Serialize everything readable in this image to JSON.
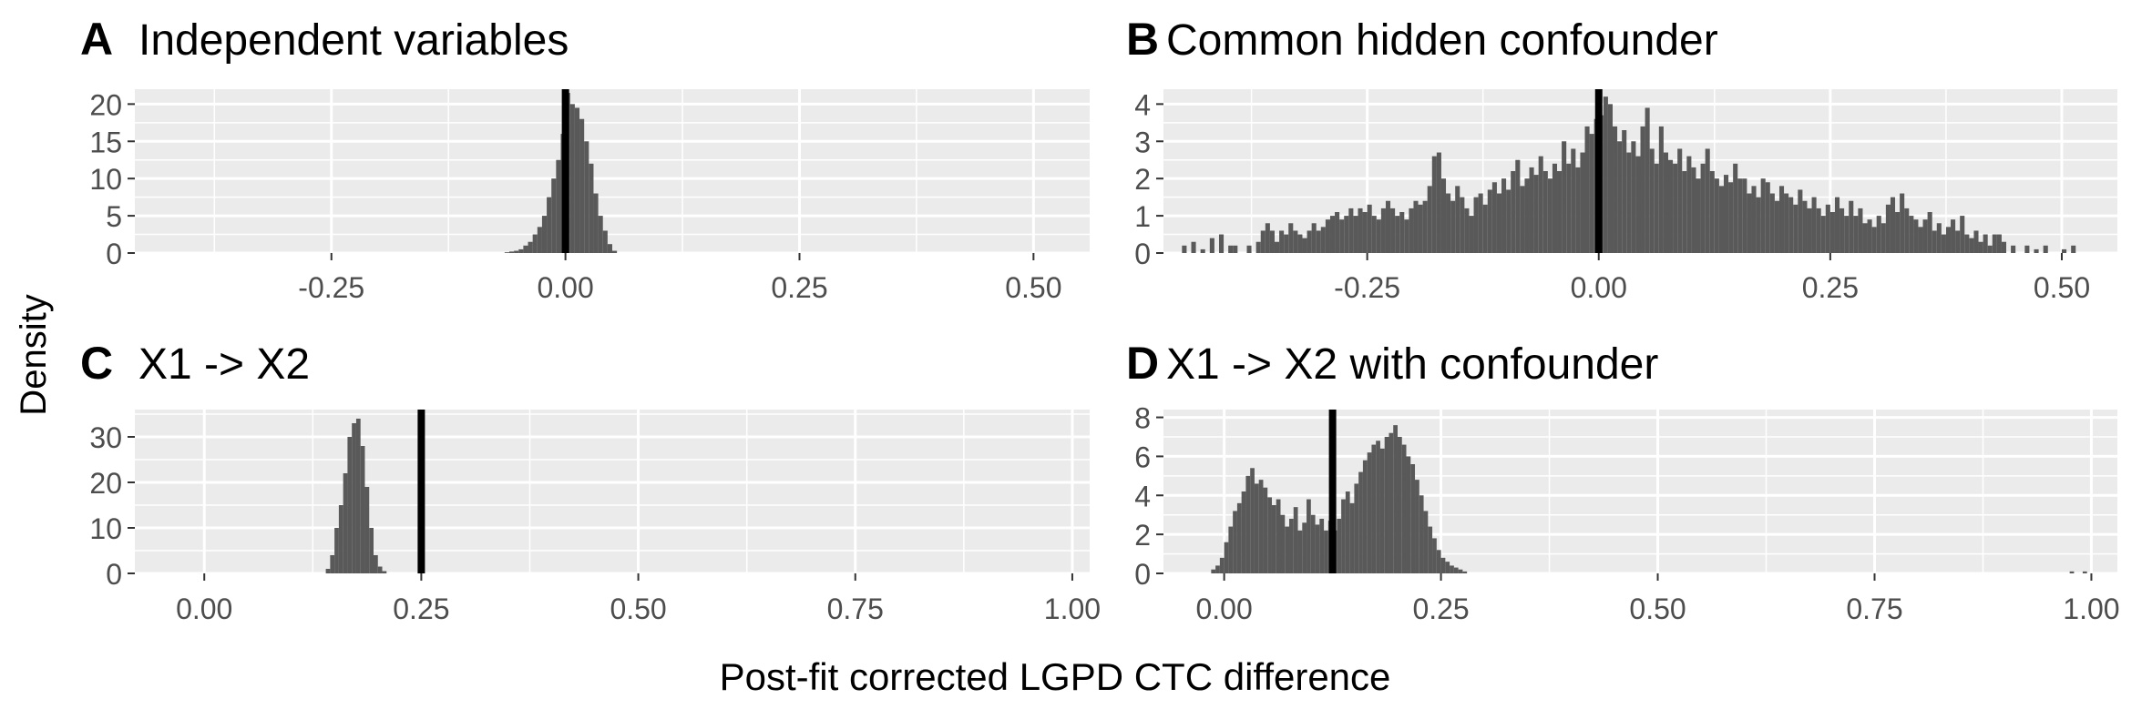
{
  "figure": {
    "ylabel": "Density",
    "xlabel": "Post-fit corrected LGPD CTC difference"
  },
  "chart_data": [
    {
      "type": "histogram",
      "panel": "A",
      "title": "Independent variables",
      "xlim": [
        -0.46,
        0.56
      ],
      "ylim": [
        0,
        22
      ],
      "xticks": [
        -0.25,
        0.0,
        0.25,
        0.5
      ],
      "xtick_labels": [
        "-0.25",
        "0.00",
        "0.25",
        "0.50"
      ],
      "yticks": [
        0,
        5,
        10,
        15,
        20
      ],
      "ytick_labels": [
        "0",
        "5",
        "10",
        "15",
        "20"
      ],
      "vline": 0.0,
      "bin_width": 0.005,
      "bins": [
        [
          -0.065,
          0.1
        ],
        [
          -0.06,
          0.2
        ],
        [
          -0.055,
          0.3
        ],
        [
          -0.05,
          0.5
        ],
        [
          -0.045,
          1.0
        ],
        [
          -0.04,
          1.5
        ],
        [
          -0.035,
          2.5
        ],
        [
          -0.03,
          3.5
        ],
        [
          -0.025,
          5.0
        ],
        [
          -0.02,
          7.5
        ],
        [
          -0.015,
          10.0
        ],
        [
          -0.01,
          12.5
        ],
        [
          -0.005,
          16.0
        ],
        [
          0.0,
          21.5
        ],
        [
          0.005,
          20.0
        ],
        [
          0.01,
          19.5
        ],
        [
          0.015,
          18.0
        ],
        [
          0.02,
          15.0
        ],
        [
          0.025,
          12.0
        ],
        [
          0.03,
          8.0
        ],
        [
          0.035,
          5.0
        ],
        [
          0.04,
          3.0
        ],
        [
          0.045,
          1.2
        ],
        [
          0.05,
          0.3
        ]
      ],
      "grid": true
    },
    {
      "type": "histogram",
      "panel": "B",
      "title": "Common hidden confounder",
      "xlim": [
        -0.47,
        0.56
      ],
      "ylim": [
        0,
        4.4
      ],
      "xticks": [
        -0.25,
        0.0,
        0.25,
        0.5
      ],
      "xtick_labels": [
        "-0.25",
        "0.00",
        "0.25",
        "0.50"
      ],
      "yticks": [
        0,
        1,
        2,
        3,
        4
      ],
      "ytick_labels": [
        "0",
        "1",
        "2",
        "3",
        "4"
      ],
      "vline": 0.0,
      "bin_width": 0.005,
      "bins": [
        [
          -0.45,
          0.2
        ],
        [
          -0.44,
          0.3
        ],
        [
          -0.43,
          0.1
        ],
        [
          -0.42,
          0.4
        ],
        [
          -0.41,
          0.5
        ],
        [
          -0.4,
          0.2
        ],
        [
          -0.395,
          0.2
        ],
        [
          -0.38,
          0.2
        ],
        [
          -0.37,
          0.3
        ],
        [
          -0.365,
          0.6
        ],
        [
          -0.36,
          0.8
        ],
        [
          -0.355,
          0.6
        ],
        [
          -0.35,
          0.3
        ],
        [
          -0.345,
          0.6
        ],
        [
          -0.34,
          0.5
        ],
        [
          -0.335,
          0.8
        ],
        [
          -0.33,
          0.6
        ],
        [
          -0.325,
          0.5
        ],
        [
          -0.32,
          0.4
        ],
        [
          -0.315,
          0.6
        ],
        [
          -0.31,
          0.8
        ],
        [
          -0.305,
          0.6
        ],
        [
          -0.3,
          0.7
        ],
        [
          -0.295,
          0.9
        ],
        [
          -0.29,
          1.0
        ],
        [
          -0.285,
          1.1
        ],
        [
          -0.28,
          0.9
        ],
        [
          -0.275,
          1.0
        ],
        [
          -0.27,
          1.2
        ],
        [
          -0.265,
          1.0
        ],
        [
          -0.26,
          1.2
        ],
        [
          -0.255,
          1.1
        ],
        [
          -0.25,
          1.3
        ],
        [
          -0.245,
          1.0
        ],
        [
          -0.24,
          0.9
        ],
        [
          -0.235,
          1.2
        ],
        [
          -0.23,
          1.4
        ],
        [
          -0.225,
          1.2
        ],
        [
          -0.22,
          1.0
        ],
        [
          -0.215,
          1.1
        ],
        [
          -0.21,
          0.9
        ],
        [
          -0.205,
          1.2
        ],
        [
          -0.2,
          1.4
        ],
        [
          -0.195,
          1.3
        ],
        [
          -0.19,
          1.4
        ],
        [
          -0.185,
          1.8
        ],
        [
          -0.18,
          2.6
        ],
        [
          -0.175,
          2.7
        ],
        [
          -0.17,
          2.0
        ],
        [
          -0.165,
          1.6
        ],
        [
          -0.16,
          1.4
        ],
        [
          -0.155,
          1.8
        ],
        [
          -0.15,
          1.5
        ],
        [
          -0.145,
          1.2
        ],
        [
          -0.14,
          1.0
        ],
        [
          -0.135,
          1.5
        ],
        [
          -0.13,
          1.6
        ],
        [
          -0.125,
          1.3
        ],
        [
          -0.12,
          1.7
        ],
        [
          -0.115,
          1.9
        ],
        [
          -0.11,
          1.6
        ],
        [
          -0.105,
          2.0
        ],
        [
          -0.1,
          1.7
        ],
        [
          -0.095,
          2.2
        ],
        [
          -0.09,
          2.5
        ],
        [
          -0.085,
          1.8
        ],
        [
          -0.08,
          2.0
        ],
        [
          -0.075,
          2.3
        ],
        [
          -0.07,
          2.1
        ],
        [
          -0.065,
          2.6
        ],
        [
          -0.06,
          2.2
        ],
        [
          -0.055,
          2.0
        ],
        [
          -0.05,
          2.4
        ],
        [
          -0.045,
          2.2
        ],
        [
          -0.04,
          3.0
        ],
        [
          -0.035,
          2.4
        ],
        [
          -0.03,
          2.8
        ],
        [
          -0.025,
          2.3
        ],
        [
          -0.02,
          2.7
        ],
        [
          -0.015,
          3.4
        ],
        [
          -0.01,
          3.2
        ],
        [
          -0.005,
          3.6
        ],
        [
          0.0,
          3.7
        ],
        [
          0.005,
          4.2
        ],
        [
          0.01,
          4.0
        ],
        [
          0.015,
          3.4
        ],
        [
          0.02,
          3.0
        ],
        [
          0.025,
          3.3
        ],
        [
          0.03,
          2.7
        ],
        [
          0.035,
          3.0
        ],
        [
          0.04,
          2.6
        ],
        [
          0.045,
          3.4
        ],
        [
          0.05,
          3.9
        ],
        [
          0.055,
          2.8
        ],
        [
          0.06,
          2.4
        ],
        [
          0.065,
          3.4
        ],
        [
          0.07,
          2.7
        ],
        [
          0.075,
          2.5
        ],
        [
          0.08,
          2.4
        ],
        [
          0.085,
          2.8
        ],
        [
          0.09,
          2.2
        ],
        [
          0.095,
          2.6
        ],
        [
          0.1,
          2.3
        ],
        [
          0.105,
          2.0
        ],
        [
          0.11,
          2.4
        ],
        [
          0.115,
          2.8
        ],
        [
          0.12,
          2.2
        ],
        [
          0.125,
          2.0
        ],
        [
          0.13,
          1.8
        ],
        [
          0.135,
          2.1
        ],
        [
          0.14,
          1.9
        ],
        [
          0.145,
          2.4
        ],
        [
          0.15,
          2.0
        ],
        [
          0.155,
          2.0
        ],
        [
          0.16,
          1.6
        ],
        [
          0.165,
          1.8
        ],
        [
          0.17,
          1.5
        ],
        [
          0.175,
          2.0
        ],
        [
          0.18,
          1.9
        ],
        [
          0.185,
          1.6
        ],
        [
          0.19,
          1.4
        ],
        [
          0.195,
          1.8
        ],
        [
          0.2,
          1.6
        ],
        [
          0.205,
          1.5
        ],
        [
          0.21,
          1.3
        ],
        [
          0.215,
          1.7
        ],
        [
          0.22,
          1.4
        ],
        [
          0.225,
          1.2
        ],
        [
          0.23,
          1.5
        ],
        [
          0.235,
          1.2
        ],
        [
          0.24,
          1.0
        ],
        [
          0.245,
          1.3
        ],
        [
          0.25,
          1.1
        ],
        [
          0.255,
          1.5
        ],
        [
          0.26,
          1.2
        ],
        [
          0.265,
          1.0
        ],
        [
          0.27,
          1.4
        ],
        [
          0.275,
          1.0
        ],
        [
          0.28,
          1.2
        ],
        [
          0.285,
          0.8
        ],
        [
          0.29,
          0.9
        ],
        [
          0.295,
          0.7
        ],
        [
          0.3,
          1.0
        ],
        [
          0.305,
          0.8
        ],
        [
          0.31,
          1.3
        ],
        [
          0.315,
          1.5
        ],
        [
          0.32,
          1.1
        ],
        [
          0.325,
          1.6
        ],
        [
          0.33,
          1.2
        ],
        [
          0.335,
          1.0
        ],
        [
          0.34,
          0.9
        ],
        [
          0.345,
          0.7
        ],
        [
          0.35,
          0.9
        ],
        [
          0.355,
          1.1
        ],
        [
          0.36,
          0.6
        ],
        [
          0.365,
          0.8
        ],
        [
          0.37,
          0.5
        ],
        [
          0.375,
          0.7
        ],
        [
          0.38,
          0.9
        ],
        [
          0.385,
          0.6
        ],
        [
          0.39,
          1.0
        ],
        [
          0.395,
          0.5
        ],
        [
          0.4,
          0.4
        ],
        [
          0.405,
          0.6
        ],
        [
          0.41,
          0.3
        ],
        [
          0.415,
          0.5
        ],
        [
          0.42,
          0.2
        ],
        [
          0.425,
          0.5
        ],
        [
          0.43,
          0.5
        ],
        [
          0.435,
          0.3
        ],
        [
          0.445,
          0.2
        ],
        [
          0.46,
          0.2
        ],
        [
          0.47,
          0.1
        ],
        [
          0.48,
          0.2
        ],
        [
          0.5,
          0.1
        ],
        [
          0.51,
          0.2
        ]
      ],
      "grid": true
    },
    {
      "type": "histogram",
      "panel": "C",
      "title": "X1 -> X2",
      "xlim": [
        -0.08,
        1.02
      ],
      "ylim": [
        0,
        36
      ],
      "xticks": [
        0.0,
        0.25,
        0.5,
        0.75,
        1.0
      ],
      "xtick_labels": [
        "0.00",
        "0.25",
        "0.50",
        "0.75",
        "1.00"
      ],
      "yticks": [
        0,
        10,
        20,
        30
      ],
      "ytick_labels": [
        "0",
        "10",
        "20",
        "30"
      ],
      "vline": 0.25,
      "bin_width": 0.005,
      "bins": [
        [
          0.14,
          1.0
        ],
        [
          0.145,
          4.0
        ],
        [
          0.15,
          10.0
        ],
        [
          0.155,
          15.0
        ],
        [
          0.16,
          22.0
        ],
        [
          0.165,
          30.0
        ],
        [
          0.17,
          33.0
        ],
        [
          0.175,
          34.0
        ],
        [
          0.18,
          28.0
        ],
        [
          0.185,
          19.0
        ],
        [
          0.19,
          10.0
        ],
        [
          0.195,
          4.0
        ],
        [
          0.2,
          1.5
        ],
        [
          0.205,
          0.5
        ]
      ],
      "grid": true
    },
    {
      "type": "histogram",
      "panel": "D",
      "title": "X1 -> X2 with confounder",
      "xlim": [
        -0.07,
        1.03
      ],
      "ylim": [
        0,
        8.4
      ],
      "xticks": [
        0.0,
        0.25,
        0.5,
        0.75,
        1.0
      ],
      "xtick_labels": [
        "0.00",
        "0.25",
        "0.50",
        "0.75",
        "1.00"
      ],
      "yticks": [
        0,
        2,
        4,
        6,
        8
      ],
      "ytick_labels": [
        "0",
        "2",
        "4",
        "6",
        "8"
      ],
      "vline": 0.125,
      "bin_width": 0.005,
      "bins": [
        [
          -0.015,
          0.2
        ],
        [
          -0.01,
          0.4
        ],
        [
          -0.005,
          0.8
        ],
        [
          0.0,
          1.6
        ],
        [
          0.005,
          2.4
        ],
        [
          0.01,
          3.2
        ],
        [
          0.015,
          3.6
        ],
        [
          0.02,
          4.2
        ],
        [
          0.025,
          5.0
        ],
        [
          0.03,
          5.4
        ],
        [
          0.035,
          4.6
        ],
        [
          0.04,
          4.8
        ],
        [
          0.045,
          4.4
        ],
        [
          0.05,
          3.9
        ],
        [
          0.055,
          3.5
        ],
        [
          0.06,
          3.8
        ],
        [
          0.065,
          3.0
        ],
        [
          0.07,
          2.4
        ],
        [
          0.075,
          2.8
        ],
        [
          0.08,
          3.4
        ],
        [
          0.085,
          2.2
        ],
        [
          0.09,
          2.6
        ],
        [
          0.095,
          3.8
        ],
        [
          0.1,
          3.0
        ],
        [
          0.105,
          2.5
        ],
        [
          0.11,
          2.8
        ],
        [
          0.115,
          2.2
        ],
        [
          0.12,
          2.7
        ],
        [
          0.125,
          2.2
        ],
        [
          0.13,
          2.8
        ],
        [
          0.135,
          3.8
        ],
        [
          0.14,
          4.2
        ],
        [
          0.145,
          3.6
        ],
        [
          0.15,
          4.6
        ],
        [
          0.155,
          5.2
        ],
        [
          0.16,
          5.8
        ],
        [
          0.165,
          6.2
        ],
        [
          0.17,
          6.6
        ],
        [
          0.175,
          6.8
        ],
        [
          0.18,
          6.4
        ],
        [
          0.185,
          7.0
        ],
        [
          0.19,
          7.2
        ],
        [
          0.195,
          7.6
        ],
        [
          0.2,
          7.0
        ],
        [
          0.205,
          6.6
        ],
        [
          0.21,
          6.0
        ],
        [
          0.215,
          5.6
        ],
        [
          0.22,
          4.8
        ],
        [
          0.225,
          4.0
        ],
        [
          0.23,
          3.2
        ],
        [
          0.235,
          2.4
        ],
        [
          0.24,
          1.8
        ],
        [
          0.245,
          1.2
        ],
        [
          0.25,
          0.8
        ],
        [
          0.255,
          0.6
        ],
        [
          0.26,
          0.4
        ],
        [
          0.265,
          0.3
        ],
        [
          0.27,
          0.2
        ],
        [
          0.275,
          0.1
        ],
        [
          0.975,
          0.1
        ],
        [
          0.99,
          0.1
        ]
      ],
      "grid": true
    }
  ]
}
